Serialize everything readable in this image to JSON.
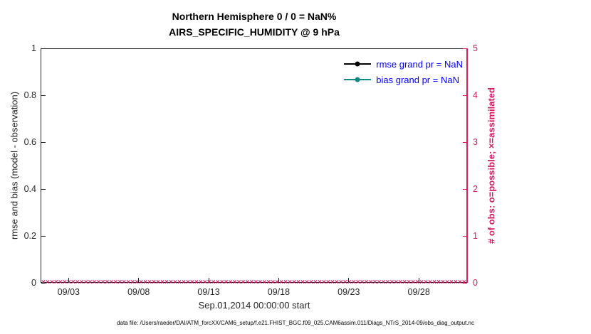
{
  "footer": "data file: /Users/raeder/DAI/ATM_forcXX/CAM6_setup/f.e21.FHIST_BGC.f09_025.CAM6assim.011/Diags_NTrS_2014-09/obs_diag_output.nc",
  "colors": {
    "axis": "#262626",
    "obs_axis": "#d81b60",
    "legend_text": "#0000ff",
    "rmse": "#000000",
    "bias": "#0d8983",
    "background": "#ffffff"
  },
  "chart_data": {
    "type": "line",
    "title": "Northern Hemisphere 0 / 0 = NaN%",
    "subtitle": "AIRS_SPECIFIC_HUMIDITY @ 9 hPa",
    "xlabel": "Sep.01,2014 00:00:00 start",
    "ylabel_left": "rmse and bias (model - observation)",
    "ylabel_right": "# of obs: o=possible; ×=assimilated",
    "ylim_left": [
      0,
      1
    ],
    "yticks_left": [
      "0",
      "0.2",
      "0.4",
      "0.6",
      "0.8",
      "1"
    ],
    "ylim_right": [
      0,
      5
    ],
    "yticks_right": [
      "0",
      "1",
      "2",
      "3",
      "4",
      "5"
    ],
    "xlim_days": [
      1,
      31.5
    ],
    "xticks": [
      {
        "label": "09/03",
        "day": 3
      },
      {
        "label": "09/08",
        "day": 8
      },
      {
        "label": "09/13",
        "day": 13
      },
      {
        "label": "09/18",
        "day": 18
      },
      {
        "label": "09/23",
        "day": 23
      },
      {
        "label": "09/28",
        "day": 28
      }
    ],
    "grid": false,
    "legend_position": "top-right-inside",
    "legend": [
      {
        "label": "rmse grand pr = NaN",
        "color": "#000000"
      },
      {
        "label": "bias grand pr = NaN",
        "color": "#0d8983"
      }
    ],
    "series": [
      {
        "name": "rmse",
        "grand_pr": "NaN",
        "values": []
      },
      {
        "name": "bias",
        "grand_pr": "NaN",
        "values": []
      }
    ],
    "assimilated_markers": {
      "glyph": "×",
      "y_value": 0,
      "count": 100
    },
    "possible_obs": 0,
    "assimilated_obs": 0,
    "percent": "NaN%"
  }
}
